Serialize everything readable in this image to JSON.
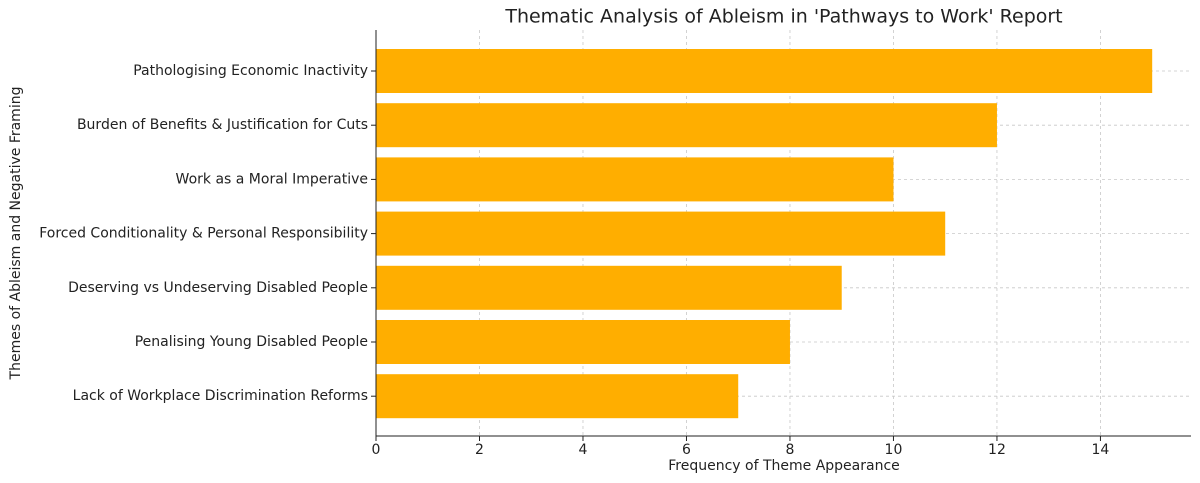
{
  "chart_data": {
    "type": "hbar",
    "title": "Thematic Analysis of Ableism in 'Pathways to Work' Report",
    "x_label": "Frequency of Theme Appearance",
    "y_label": "Themes of Ableism and Negative Framing",
    "categories": [
      "Pathologising Economic Inactivity",
      "Burden of Benefits & Justification for Cuts",
      "Work as a Moral Imperative",
      "Forced Conditionality & Personal Responsibility",
      "Deserving vs Undeserving Disabled People",
      "Penalising Young Disabled People",
      "Lack of Workplace Discrimination Reforms"
    ],
    "values": [
      15,
      12,
      10,
      11,
      9,
      8,
      7
    ],
    "color": "#ffae00",
    "xlim": [
      0,
      15.75
    ],
    "xticks": [
      0,
      2,
      4,
      6,
      8,
      10,
      12,
      14
    ],
    "grid": true
  }
}
